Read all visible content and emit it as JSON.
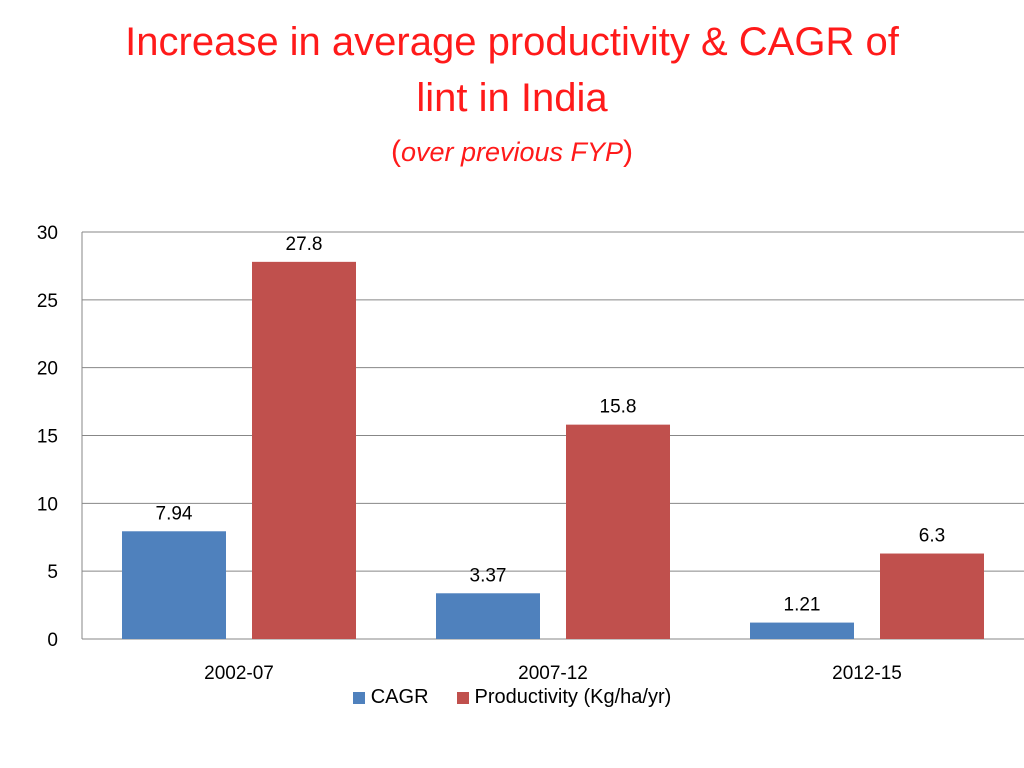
{
  "page": {
    "title_line1": "Increase in average productivity  & CAGR of",
    "title_line2": "lint in India",
    "subtitle_open": "(",
    "subtitle_italic": "over previous FYP",
    "subtitle_close": ")"
  },
  "chart_data": {
    "type": "bar",
    "title": "Increase in average productivity & CAGR of lint in India (over previous FYP)",
    "categories": [
      "2002-07",
      "2007-12",
      "2012-15"
    ],
    "series": [
      {
        "name": "CAGR",
        "values": [
          7.94,
          3.37,
          1.21
        ],
        "labels": [
          "7.94",
          "3.37",
          "1.21"
        ],
        "color": "#4f81bd"
      },
      {
        "name": "Productivity (Kg/ha/yr)",
        "values": [
          27.8,
          15.8,
          6.3
        ],
        "labels": [
          "27.8",
          "15.8",
          "6.3"
        ],
        "color": "#c0504d"
      }
    ],
    "yticks": [
      "0",
      "5",
      "10",
      "15",
      "20",
      "25",
      "30"
    ],
    "ylim": [
      0,
      30
    ],
    "grid": true,
    "legend": "bottom",
    "xlabel": "",
    "ylabel": ""
  }
}
